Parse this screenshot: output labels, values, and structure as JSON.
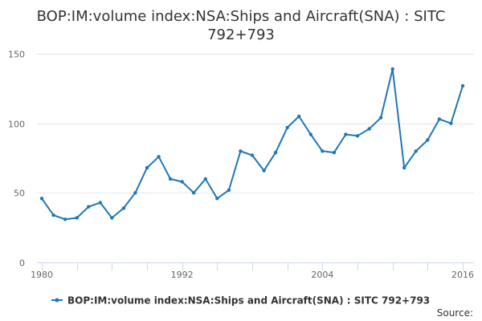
{
  "chart_data": {
    "type": "line",
    "title": "BOP:IM:volume index:NSA:Ships and Aircraft(SNA) : SITC 792+793",
    "xlabel": "",
    "ylabel": "",
    "x": [
      1980,
      1981,
      1982,
      1983,
      1984,
      1985,
      1986,
      1987,
      1988,
      1989,
      1990,
      1991,
      1992,
      1993,
      1994,
      1995,
      1996,
      1997,
      1998,
      1999,
      2000,
      2001,
      2002,
      2003,
      2004,
      2005,
      2006,
      2007,
      2008,
      2009,
      2010,
      2011,
      2012,
      2013,
      2014,
      2015,
      2016
    ],
    "xlim": [
      1980,
      2016
    ],
    "ylim": [
      0,
      150
    ],
    "x_ticks": [
      1980,
      1992,
      2004,
      2016
    ],
    "y_ticks": [
      0,
      50,
      100,
      150
    ],
    "grid": true,
    "legend_position": "bottom",
    "series": [
      {
        "name": "BOP:IM:volume index:NSA:Ships and Aircraft(SNA) : SITC 792+793",
        "color": "#1f78b4",
        "values": [
          46,
          34,
          31,
          32,
          40,
          43,
          32,
          39,
          50,
          68,
          76,
          60,
          58,
          50,
          60,
          46,
          52,
          80,
          77,
          66,
          79,
          97,
          105,
          92,
          80,
          79,
          92,
          91,
          96,
          104,
          139,
          68,
          80,
          88,
          103,
          100,
          127
        ]
      }
    ]
  },
  "credits": {
    "text": "Source:"
  }
}
